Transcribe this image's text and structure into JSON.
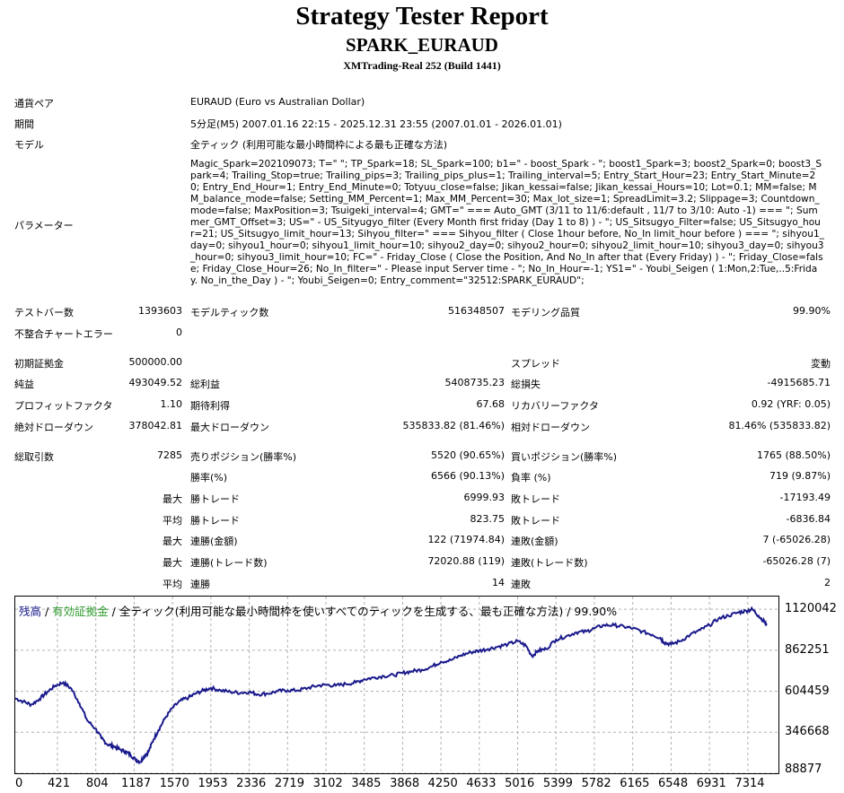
{
  "header": {
    "title": "Strategy Tester Report",
    "ea_name": "SPARK_EURAUD",
    "server": "XMTrading-Real 252 (Build 1441)"
  },
  "info": {
    "symbol_label": "通貨ペア",
    "symbol_value": "EURAUD (Euro vs Australian Dollar)",
    "period_label": "期間",
    "period_value": "5分足(M5) 2007.01.16 22:15 - 2025.12.31 23:55 (2007.01.01 - 2026.01.01)",
    "model_label": "モデル",
    "model_value": "全ティック (利用可能な最小時間枠による最も正確な方法)",
    "params_label": "パラメーター",
    "params_value": "Magic_Spark=202109073; T=\" \"; TP_Spark=18; SL_Spark=100; b1=\" - boost_Spark - \"; boost1_Spark=3; boost2_Spark=0; boost3_Spark=4; Trailing_Stop=true; Trailing_pips=3; Trailing_pips_plus=1; Trailing_interval=5; Entry_Start_Hour=23; Entry_Start_Minute=20; Entry_End_Hour=1; Entry_End_Minute=0; Totyuu_close=false; Jikan_kessai=false; Jikan_kessai_Hours=10; Lot=0.1; MM=false; MM_balance_mode=false; Setting_MM_Percent=1; Max_MM_Percent=30; Max_lot_size=1; SpreadLimit=3.2; Slippage=3; Countdown_mode=false; MaxPosition=3; Tsuigeki_interval=4; GMT=\" === Auto_GMT (3/11 to 11/6:default , 11/7 to 3/10: Auto -1) === \"; Summer_GMT_Offset=3; US=\" - US_Sityugyo_filter (Every Month first friday (Day 1 to 8) ) - \"; US_Sitsugyo_Filter=false; US_Sitsugyo_hour=21; US_Sitsugyo_limit_hour=13; Sihyou_filter=\" === Sihyou_filter ( Close 1hour before, No_In limit_hour before ) === \"; sihyou1_day=0; sihyou1_hour=0; sihyou1_limit_hour=10; sihyou2_day=0; sihyou2_hour=0; sihyou2_limit_hour=10; sihyou3_day=0; sihyou3_hour=0; sihyou3_limit_hour=10; FC=\" - Friday_Close ( Close the Position, And No_In after that (Every Friday) ) - \"; Friday_Close=false; Friday_Close_Hour=26; No_In_filter=\" - Please input Server time - \"; No_In_Hour=-1; YS1=\" - Youbi_Seigen ( 1:Mon,2:Tue,..5:Friday. No_in_the_Day ) - \"; Youbi_Seigen=0; Entry_comment=\"32512:SPARK_EURAUD\";"
  },
  "stats": {
    "bars_label": "テストバー数",
    "bars_value": "1393603",
    "ticks_label": "モデルティック数",
    "ticks_value": "516348507",
    "quality_label": "モデリング品質",
    "quality_value": "99.90%",
    "mismatch_label": "不整合チャートエラー",
    "mismatch_value": "0",
    "deposit_label": "初期証拠金",
    "deposit_value": "500000.00",
    "spread_label": "スプレッド",
    "spread_value": "変動",
    "net_label": "純益",
    "net_value": "493049.52",
    "gross_profit_label": "総利益",
    "gross_profit_value": "5408735.23",
    "gross_loss_label": "総損失",
    "gross_loss_value": "-4915685.71",
    "pf_label": "プロフィットファクタ",
    "pf_value": "1.10",
    "expected_label": "期待利得",
    "expected_value": "67.68",
    "recovery_label": "リカバリーファクタ",
    "recovery_value": "0.92 (YRF: 0.05)",
    "abs_dd_label": "絶対ドローダウン",
    "abs_dd_value": "378042.81",
    "max_dd_label": "最大ドローダウン",
    "max_dd_value": "535833.82 (81.46%)",
    "rel_dd_label": "相対ドローダウン",
    "rel_dd_value": "81.46% (535833.82)",
    "trades_label": "総取引数",
    "trades_value": "7285",
    "short_label": "売りポジション(勝率%)",
    "short_value": "5520 (90.65%)",
    "long_label": "買いポジション(勝率%)",
    "long_value": "1765 (88.50%)",
    "win_rate_label": "勝率(%)",
    "win_rate_value": "6566 (90.13%)",
    "loss_rate_label": "負率 (%)",
    "loss_rate_value": "719 (9.87%)",
    "largest_prefix": "最大",
    "largest_win_label": "勝トレード",
    "largest_win_value": "6999.93",
    "largest_loss_label": "敗トレード",
    "largest_loss_value": "-17193.49",
    "average_prefix": "平均",
    "avg_win_label": "勝トレード",
    "avg_win_value": "823.75",
    "avg_loss_label": "敗トレード",
    "avg_loss_value": "-6836.84",
    "max_cons_prefix": "最大",
    "max_cons_wins_label": "連勝(金額)",
    "max_cons_wins_value": "122 (71974.84)",
    "max_cons_losses_label": "連敗(金額)",
    "max_cons_losses_value": "7 (-65026.28)",
    "max_cons_profit_prefix": "最大",
    "max_cons_profit_label": "連勝(トレード数)",
    "max_cons_profit_value": "72020.88 (119)",
    "max_cons_loss_label": "連敗(トレード数)",
    "max_cons_loss_value": "-65026.28 (7)",
    "avg_cons_prefix": "平均",
    "avg_cons_wins_label": "連勝",
    "avg_cons_wins_value": "14",
    "avg_cons_losses_label": "連敗",
    "avg_cons_losses_value": "2"
  },
  "chart_data": {
    "type": "line",
    "legend": {
      "balance": "残高",
      "sep1": " / ",
      "equity": "有効証拠金",
      "sep2": " / ",
      "model": "全ティック(利用可能な最小時間枠を使いすべてのティックを生成する、最も正確な方法) / 99.90%"
    },
    "colors": {
      "line": "#1a1a8c",
      "balance_label": "#1a1a8c",
      "equity_label": "#2f9d2f",
      "grid": "#b0b0b0"
    },
    "y_ticks": [
      "1120042",
      "862251",
      "604459",
      "346668",
      "88877"
    ],
    "y_tick_values": [
      1120042,
      862251,
      604459,
      346668,
      88877
    ],
    "x_ticks": [
      "0",
      "421",
      "804",
      "1187",
      "1570",
      "1953",
      "2336",
      "2719",
      "3102",
      "3485",
      "3868",
      "4250",
      "4633",
      "5016",
      "5399",
      "5782",
      "6165",
      "6548",
      "6931",
      "7314"
    ],
    "x_tick_values": [
      0,
      421,
      804,
      1187,
      1570,
      1953,
      2336,
      2719,
      3102,
      3485,
      3868,
      4250,
      4633,
      5016,
      5399,
      5782,
      6165,
      6548,
      6931,
      7314
    ],
    "xlim": [
      0,
      7620
    ],
    "ylim": [
      88877,
      1200000
    ],
    "series": [
      {
        "x": [
          0,
          80,
          160,
          240,
          320,
          400,
          480,
          560,
          640,
          720,
          800,
          860,
          920,
          980,
          1040,
          1100,
          1150,
          1200,
          1250,
          1290,
          1330,
          1380,
          1430,
          1500,
          1570,
          1650,
          1730,
          1800,
          1880,
          1953,
          2050,
          2150,
          2250,
          2336,
          2420,
          2520,
          2620,
          2719,
          2820,
          2920,
          3020,
          3102,
          3200,
          3300,
          3400,
          3485,
          3580,
          3680,
          3780,
          3868,
          3960,
          4060,
          4160,
          4250,
          4350,
          4450,
          4550,
          4633,
          4720,
          4820,
          4920,
          5016,
          5100,
          5160,
          5220,
          5300,
          5399,
          5500,
          5600,
          5700,
          5782,
          5880,
          5980,
          6080,
          6165,
          6260,
          6360,
          6440,
          6480,
          6548,
          6640,
          6740,
          6840,
          6931,
          7020,
          7120,
          7220,
          7300,
          7360,
          7420,
          7480,
          7500
        ],
        "y": [
          560000,
          540000,
          520000,
          555000,
          600000,
          640000,
          660000,
          620000,
          530000,
          420000,
          370000,
          310000,
          270000,
          260000,
          240000,
          225000,
          205000,
          175000,
          160000,
          200000,
          225000,
          300000,
          360000,
          440000,
          500000,
          545000,
          565000,
          590000,
          610000,
          625000,
          610000,
          600000,
          595000,
          600000,
          585000,
          590000,
          605000,
          610000,
          610000,
          625000,
          640000,
          645000,
          640000,
          650000,
          660000,
          680000,
          690000,
          700000,
          705000,
          720000,
          730000,
          740000,
          760000,
          790000,
          800000,
          830000,
          850000,
          860000,
          870000,
          885000,
          900000,
          920000,
          890000,
          825000,
          860000,
          870000,
          930000,
          950000,
          975000,
          980000,
          1000000,
          1020000,
          1020000,
          1010000,
          1000000,
          980000,
          960000,
          940000,
          910000,
          900000,
          920000,
          960000,
          990000,
          1020000,
          1060000,
          1080000,
          1100000,
          1110000,
          1120000,
          1080000,
          1040000,
          1020000
        ]
      }
    ]
  }
}
